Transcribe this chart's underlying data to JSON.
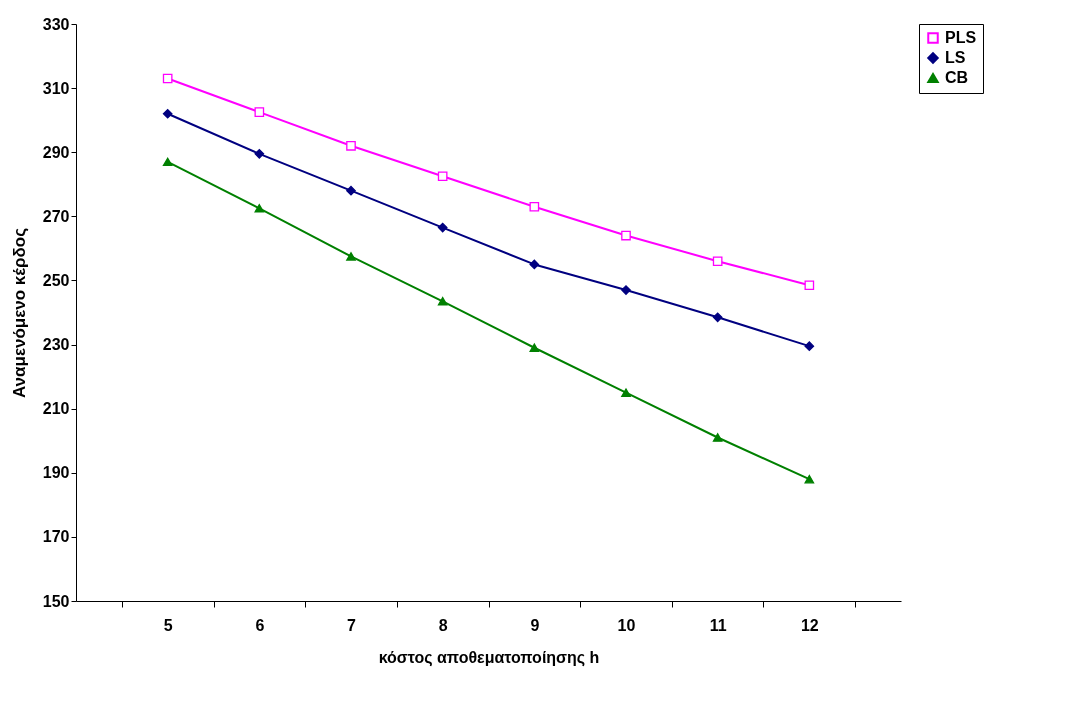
{
  "chart_data": {
    "type": "line",
    "xlabel": "κόστος αποθεματοποίησης h",
    "ylabel": "Αναμενόμενο κέρδος",
    "categories": [
      "5",
      "6",
      "7",
      "8",
      "9",
      "10",
      "11",
      "12"
    ],
    "series": [
      {
        "name": "PLS",
        "color": "#ff00ff",
        "marker": "square",
        "values": [
          313,
          302.5,
          292,
          282.5,
          273,
          264,
          256,
          248.5
        ]
      },
      {
        "name": "LS",
        "color": "#000080",
        "marker": "diamond",
        "values": [
          302,
          289.5,
          278,
          266.5,
          255,
          247,
          238.5,
          229.5
        ]
      },
      {
        "name": "CB",
        "color": "#008000",
        "marker": "triangle",
        "values": [
          287,
          272.5,
          257.5,
          243.5,
          229,
          215,
          201,
          188
        ]
      }
    ],
    "ylim": [
      150,
      330
    ],
    "yticks": [
      150,
      170,
      190,
      210,
      230,
      250,
      270,
      290,
      310,
      330
    ],
    "grid": false,
    "legend": "right"
  }
}
